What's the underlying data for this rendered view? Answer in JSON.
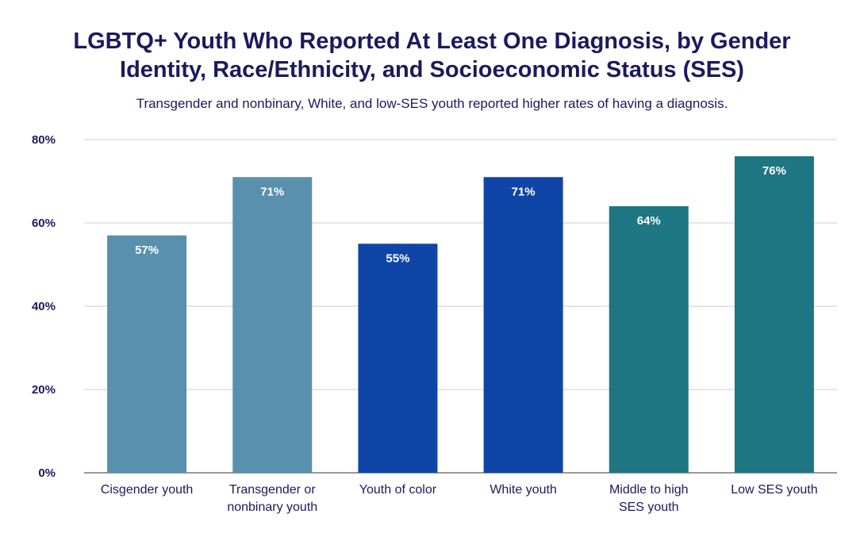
{
  "chart_data": {
    "type": "bar",
    "title_lines": [
      "LGBTQ+ Youth Who Reported At Least One Diagnosis, by Gender",
      "Identity, Race/Ethnicity, and Socioeconomic Status (SES)"
    ],
    "subtitle": "Transgender and nonbinary, White, and low-SES youth reported higher rates of having a diagnosis.",
    "categories": [
      [
        "Cisgender youth"
      ],
      [
        "Transgender or",
        "nonbinary youth"
      ],
      [
        "Youth of color"
      ],
      [
        "White youth"
      ],
      [
        "Middle to high",
        "SES youth"
      ],
      [
        "Low SES youth"
      ]
    ],
    "values": [
      57,
      71,
      55,
      71,
      64,
      76
    ],
    "data_labels": [
      "57%",
      "71%",
      "55%",
      "71%",
      "64%",
      "76%"
    ],
    "colors": [
      "#5890ad",
      "#5890ad",
      "#1045a8",
      "#1045a8",
      "#1e7682",
      "#1e7682"
    ],
    "ylim": [
      0,
      80
    ],
    "yticks": [
      0,
      20,
      40,
      60,
      80
    ],
    "ytick_labels": [
      "0%",
      "20%",
      "40%",
      "60%",
      "80%"
    ],
    "xlabel": "",
    "ylabel": "",
    "grid": true,
    "legend": "none"
  }
}
